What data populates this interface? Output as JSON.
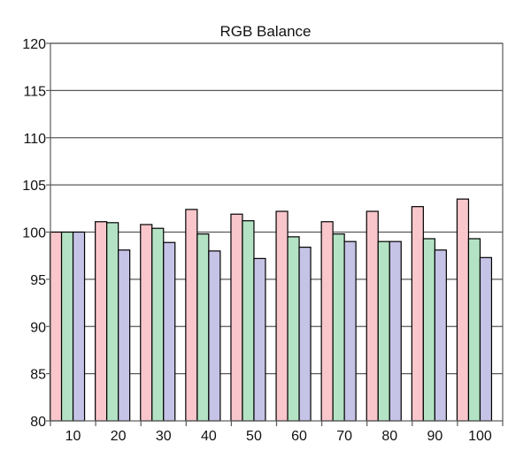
{
  "chart_data": {
    "type": "bar",
    "title": "RGB Balance",
    "xlabel": "",
    "ylabel": "",
    "categories": [
      "10",
      "20",
      "30",
      "40",
      "50",
      "60",
      "70",
      "80",
      "90",
      "100"
    ],
    "series": [
      {
        "color": "#f8c6cb",
        "values": [
          100.0,
          101.1,
          100.8,
          102.4,
          101.9,
          102.2,
          101.1,
          102.2,
          102.7,
          103.5
        ]
      },
      {
        "color": "#b3e3c4",
        "values": [
          100.0,
          101.0,
          100.4,
          99.8,
          101.2,
          99.5,
          99.8,
          99.0,
          99.3,
          99.3
        ]
      },
      {
        "color": "#c5c3e6",
        "values": [
          100.0,
          98.1,
          98.9,
          98.0,
          97.2,
          98.4,
          99.0,
          99.0,
          98.1,
          97.3
        ]
      }
    ],
    "ylim": [
      80,
      120
    ],
    "yticks": [
      80,
      85,
      90,
      95,
      100,
      105,
      110,
      115,
      120
    ],
    "grid": true,
    "legend": "none"
  }
}
